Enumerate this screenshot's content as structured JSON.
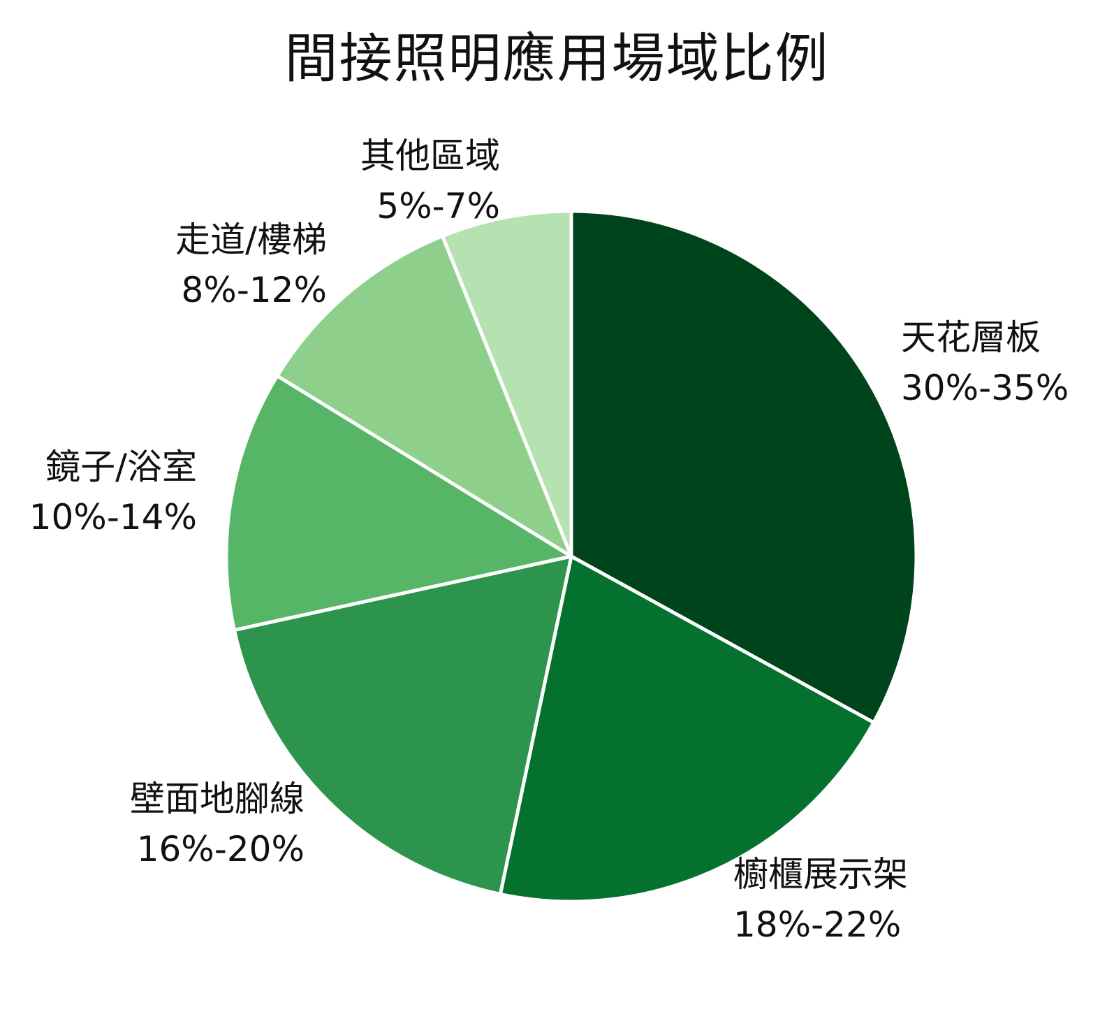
{
  "chart_data": {
    "type": "pie",
    "title": "間接照明應用場域比例",
    "start_angle_deg": 90,
    "direction": "clockwise",
    "slice_border_color": "#ffffff",
    "slices": [
      {
        "category": "天花層板",
        "range_label": "30%-35%",
        "value": 32.5,
        "color": "#00441b"
      },
      {
        "category": "櫥櫃展示架",
        "range_label": "18%-22%",
        "value": 20,
        "color": "#05712f"
      },
      {
        "category": "壁面地腳線",
        "range_label": "16%-20%",
        "value": 18,
        "color": "#2c944c"
      },
      {
        "category": "鏡子/浴室",
        "range_label": "10%-14%",
        "value": 12,
        "color": "#56b567"
      },
      {
        "category": "走道/樓梯",
        "range_label": "8%-12%",
        "value": 10,
        "color": "#8ed08b"
      },
      {
        "category": "其他區域",
        "range_label": "5%-7%",
        "value": 6,
        "color": "#b6e2b1"
      }
    ]
  }
}
